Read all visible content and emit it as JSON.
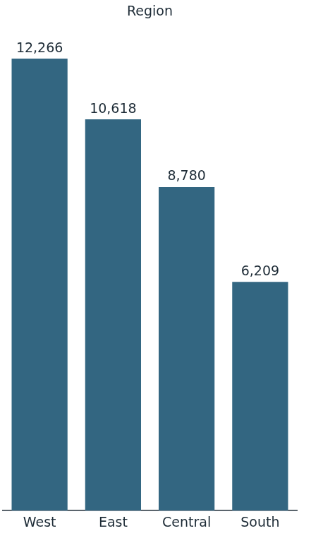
{
  "chart_data": {
    "type": "bar",
    "title": "Region",
    "categories": [
      "West",
      "East",
      "Central",
      "South"
    ],
    "values": [
      12266,
      10618,
      8780,
      6209
    ],
    "value_labels": [
      "12,266",
      "10,618",
      "8,780",
      "6,209"
    ],
    "color": "#336681",
    "ylim": [
      0,
      13000
    ],
    "grid": false,
    "data_labels": true,
    "tick_labels": "x"
  }
}
